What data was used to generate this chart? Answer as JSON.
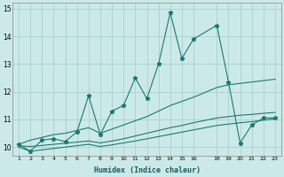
{
  "xlabel": "Humidex (Indice chaleur)",
  "x": [
    1,
    2,
    3,
    4,
    5,
    6,
    7,
    8,
    9,
    10,
    11,
    12,
    13,
    14,
    15,
    16,
    18,
    19,
    20,
    21,
    22,
    23
  ],
  "line1_y": [
    10.1,
    9.85,
    10.25,
    10.3,
    10.2,
    10.55,
    11.85,
    10.45,
    11.3,
    11.5,
    12.5,
    11.75,
    13.0,
    14.85,
    13.2,
    13.9,
    14.4,
    12.35,
    10.15,
    10.8,
    11.05,
    11.05
  ],
  "line2_y": [
    10.1,
    10.25,
    10.35,
    10.45,
    10.5,
    10.6,
    10.7,
    10.5,
    10.65,
    10.8,
    10.95,
    11.1,
    11.3,
    11.5,
    11.65,
    11.8,
    12.15,
    12.25,
    12.3,
    12.35,
    12.4,
    12.45
  ],
  "line3_y": [
    10.05,
    10.02,
    10.06,
    10.1,
    10.14,
    10.18,
    10.22,
    10.15,
    10.22,
    10.3,
    10.4,
    10.5,
    10.6,
    10.7,
    10.78,
    10.88,
    11.05,
    11.1,
    11.15,
    11.18,
    11.22,
    11.25
  ],
  "line4_y": [
    10.0,
    9.85,
    9.9,
    9.95,
    10.0,
    10.05,
    10.1,
    10.02,
    10.08,
    10.15,
    10.22,
    10.3,
    10.38,
    10.46,
    10.54,
    10.62,
    10.78,
    10.83,
    10.88,
    10.92,
    10.97,
    11.02
  ],
  "line_color": "#1a7a6e",
  "bg_color": "#cce9e9",
  "grid_color": "#aacfcf",
  "ylim": [
    9.7,
    15.2
  ],
  "xlim": [
    0.5,
    23.5
  ],
  "yticks": [
    10,
    11,
    12,
    13,
    14,
    15
  ],
  "xticks": [
    1,
    2,
    3,
    4,
    5,
    6,
    7,
    8,
    9,
    10,
    11,
    12,
    13,
    14,
    15,
    16,
    18,
    19,
    20,
    21,
    22,
    23
  ]
}
